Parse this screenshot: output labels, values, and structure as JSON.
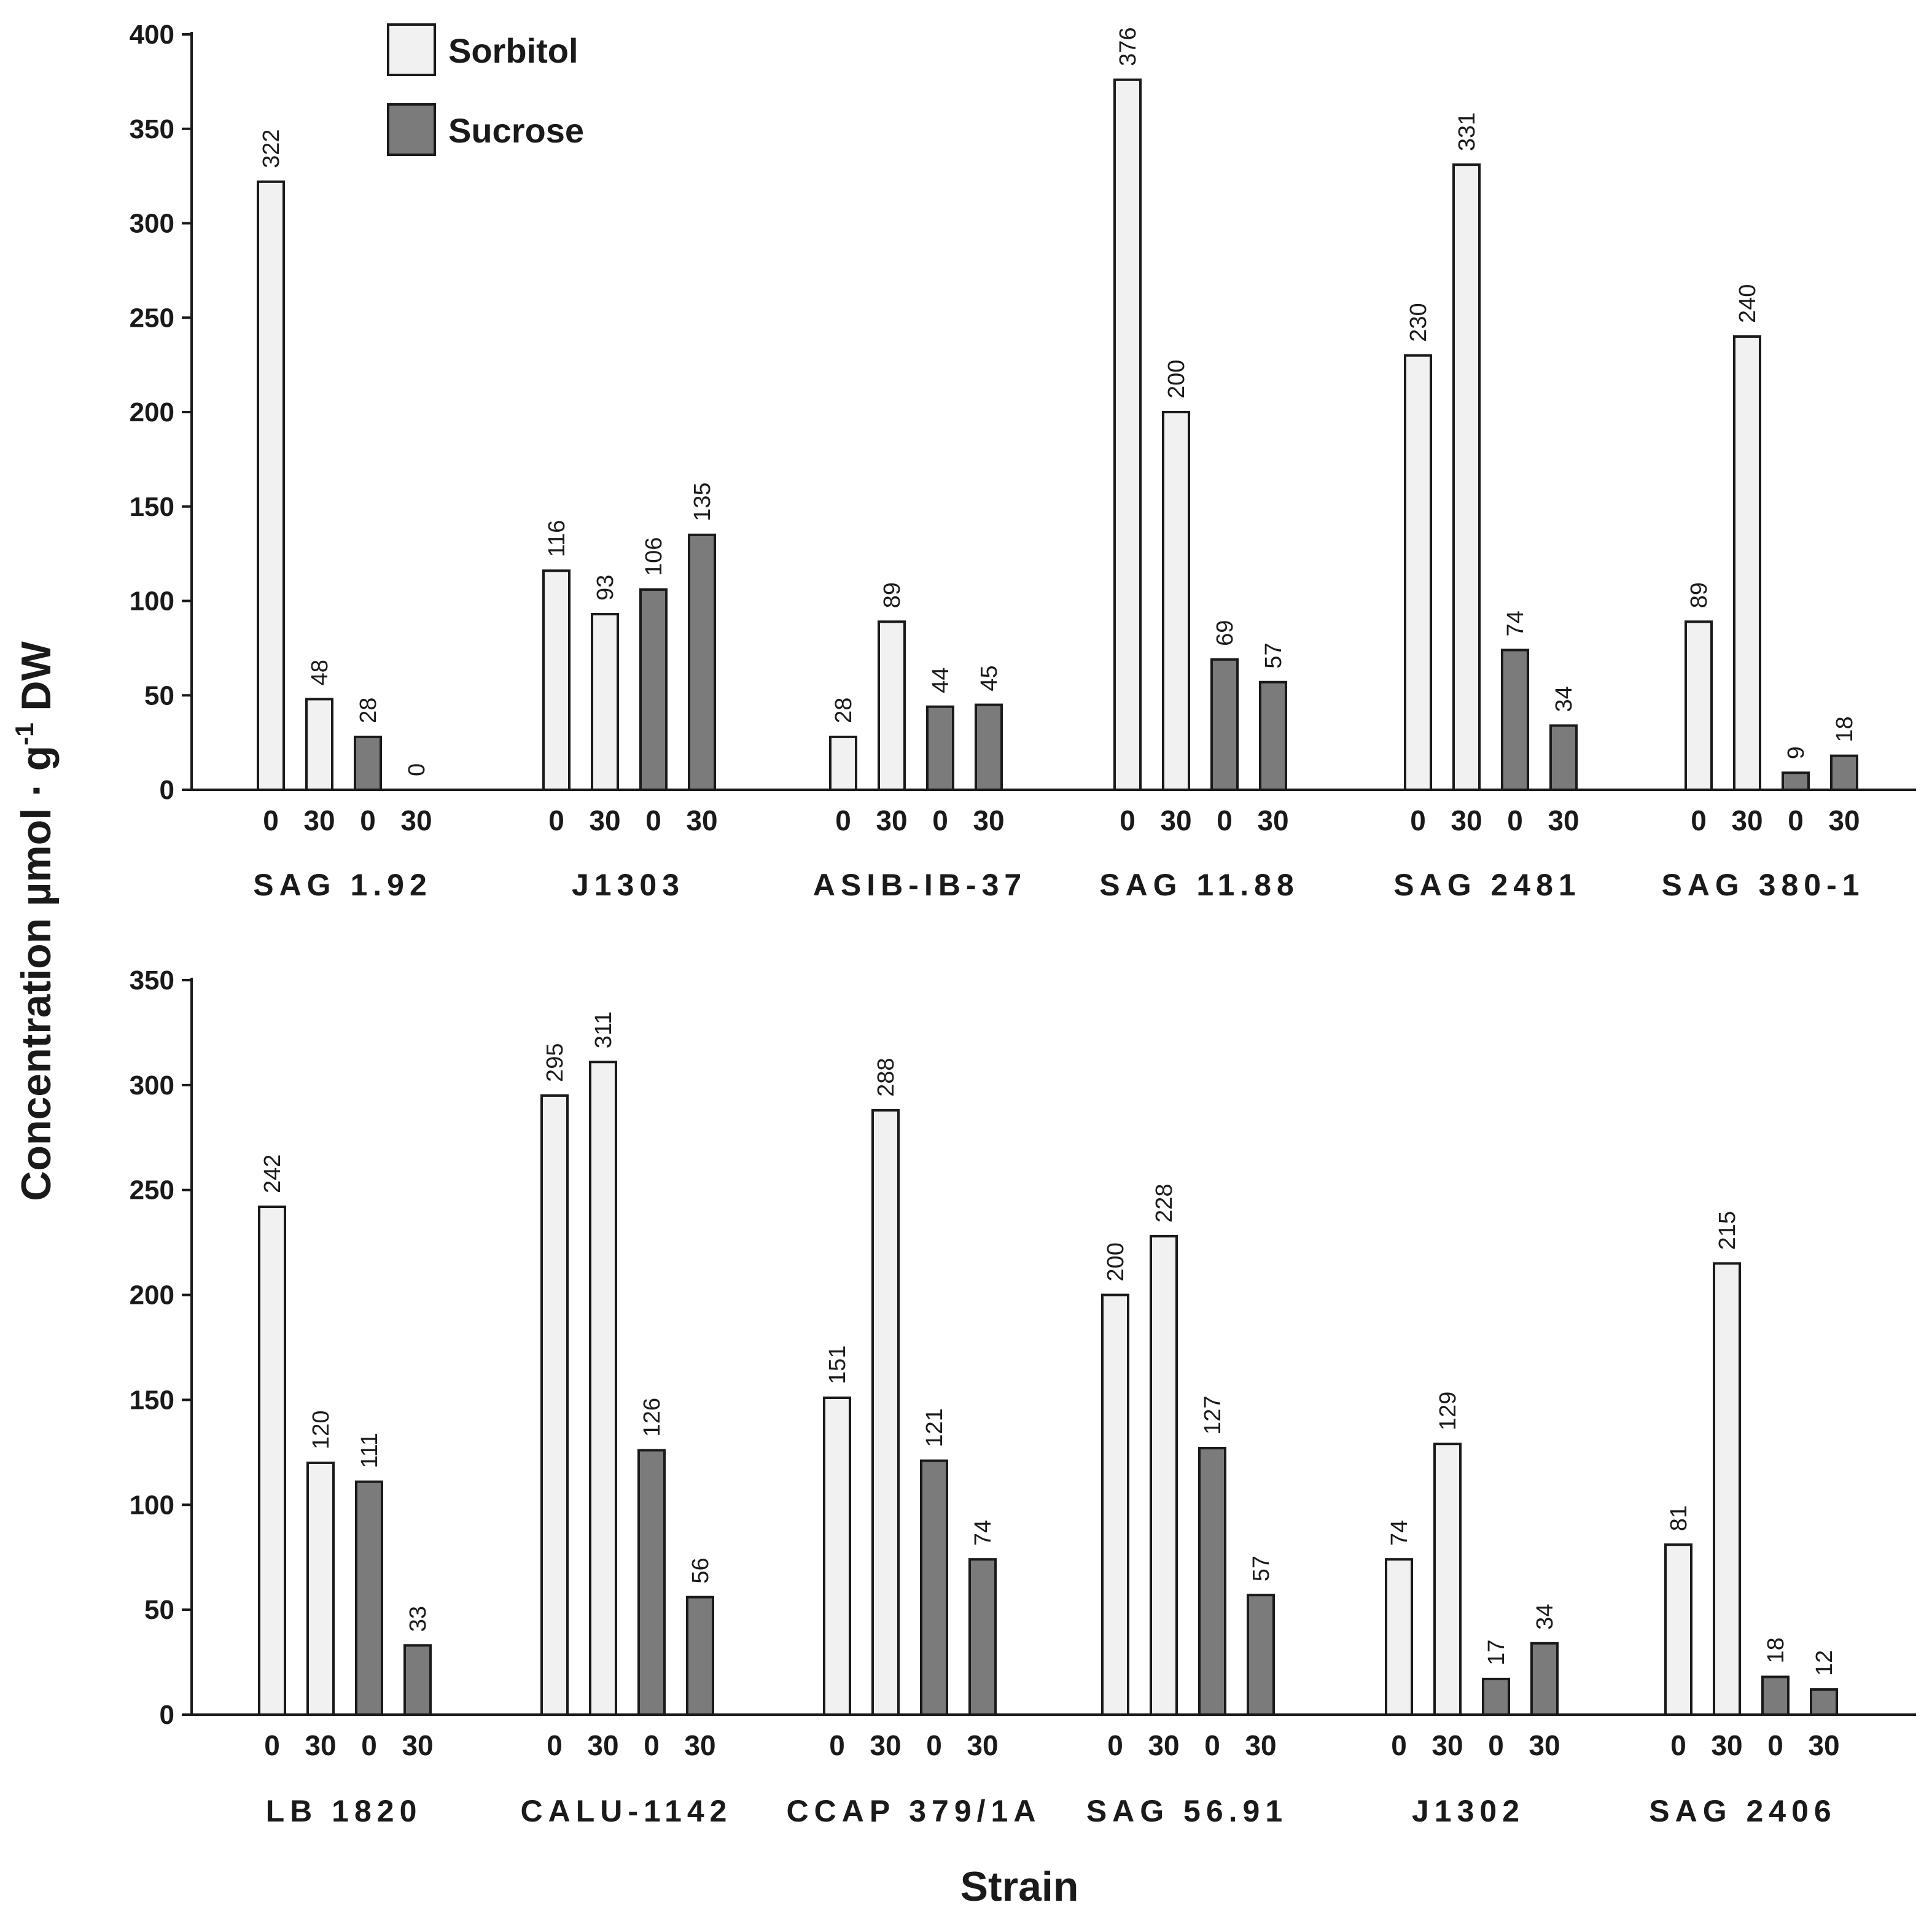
{
  "chart_data": {
    "type": "bar",
    "y_axis_label": "Concentration µmol · g",
    "y_axis_label_sup": "-1",
    "y_axis_label_suffix": " DW",
    "x_axis_label": "Strain",
    "colors": {
      "Sorbitol": "#f1f1f1",
      "Sucrose": "#7b7b7b",
      "axis": "#1a1a1a"
    },
    "legend": [
      {
        "name": "Sorbitol",
        "color": "#f1f1f1"
      },
      {
        "name": "Sucrose",
        "color": "#7b7b7b"
      }
    ],
    "panels": [
      {
        "ylim": [
          0,
          400
        ],
        "yticks": [
          "0",
          "50",
          "100",
          "150",
          "200",
          "250",
          "300",
          "350",
          "400"
        ],
        "groups": [
          {
            "strain": "SAG 1.92",
            "bars": [
              {
                "series": "Sorbitol",
                "condition": "0",
                "value": 322,
                "label": "322"
              },
              {
                "series": "Sorbitol",
                "condition": "30",
                "value": 48,
                "label": "48"
              },
              {
                "series": "Sucrose",
                "condition": "0",
                "value": 28,
                "label": "28"
              },
              {
                "series": "Sucrose",
                "condition": "30",
                "value": 0,
                "label": "0"
              }
            ]
          },
          {
            "strain": "J1303",
            "bars": [
              {
                "series": "Sorbitol",
                "condition": "0",
                "value": 116,
                "label": "116"
              },
              {
                "series": "Sorbitol",
                "condition": "30",
                "value": 93,
                "label": "93"
              },
              {
                "series": "Sucrose",
                "condition": "0",
                "value": 106,
                "label": "106"
              },
              {
                "series": "Sucrose",
                "condition": "30",
                "value": 135,
                "label": "135"
              }
            ]
          },
          {
            "strain": "ASIB-IB-37",
            "bars": [
              {
                "series": "Sorbitol",
                "condition": "0",
                "value": 28,
                "label": "28"
              },
              {
                "series": "Sorbitol",
                "condition": "30",
                "value": 89,
                "label": "89"
              },
              {
                "series": "Sucrose",
                "condition": "0",
                "value": 44,
                "label": "44"
              },
              {
                "series": "Sucrose",
                "condition": "30",
                "value": 45,
                "label": "45"
              }
            ]
          },
          {
            "strain": "SAG 11.88",
            "bars": [
              {
                "series": "Sorbitol",
                "condition": "0",
                "value": 376,
                "label": "376"
              },
              {
                "series": "Sorbitol",
                "condition": "30",
                "value": 200,
                "label": "200"
              },
              {
                "series": "Sucrose",
                "condition": "0",
                "value": 69,
                "label": "69"
              },
              {
                "series": "Sucrose",
                "condition": "30",
                "value": 57,
                "label": "57"
              }
            ]
          },
          {
            "strain": "SAG 2481",
            "bars": [
              {
                "series": "Sorbitol",
                "condition": "0",
                "value": 230,
                "label": "230"
              },
              {
                "series": "Sorbitol",
                "condition": "30",
                "value": 331,
                "label": "331"
              },
              {
                "series": "Sucrose",
                "condition": "0",
                "value": 74,
                "label": "74"
              },
              {
                "series": "Sucrose",
                "condition": "30",
                "value": 34,
                "label": "34"
              }
            ]
          },
          {
            "strain": "SAG 380-1",
            "bars": [
              {
                "series": "Sorbitol",
                "condition": "0",
                "value": 89,
                "label": "89"
              },
              {
                "series": "Sorbitol",
                "condition": "30",
                "value": 240,
                "label": "240"
              },
              {
                "series": "Sucrose",
                "condition": "0",
                "value": 9,
                "label": "9"
              },
              {
                "series": "Sucrose",
                "condition": "30",
                "value": 18,
                "label": "18"
              }
            ]
          }
        ]
      },
      {
        "ylim": [
          0,
          350
        ],
        "yticks": [
          "0",
          "50",
          "100",
          "150",
          "200",
          "250",
          "300",
          "350"
        ],
        "groups": [
          {
            "strain": "LB 1820",
            "bars": [
              {
                "series": "Sorbitol",
                "condition": "0",
                "value": 242,
                "label": "242"
              },
              {
                "series": "Sorbitol",
                "condition": "30",
                "value": 120,
                "label": "120"
              },
              {
                "series": "Sucrose",
                "condition": "0",
                "value": 111,
                "label": "111"
              },
              {
                "series": "Sucrose",
                "condition": "30",
                "value": 33,
                "label": "33"
              }
            ]
          },
          {
            "strain": "CALU-1142",
            "bars": [
              {
                "series": "Sorbitol",
                "condition": "0",
                "value": 295,
                "label": "295"
              },
              {
                "series": "Sorbitol",
                "condition": "30",
                "value": 311,
                "label": "311"
              },
              {
                "series": "Sucrose",
                "condition": "0",
                "value": 126,
                "label": "126"
              },
              {
                "series": "Sucrose",
                "condition": "30",
                "value": 56,
                "label": "56"
              }
            ]
          },
          {
            "strain": "CCAP 379/1A",
            "bars": [
              {
                "series": "Sorbitol",
                "condition": "0",
                "value": 151,
                "label": "151"
              },
              {
                "series": "Sorbitol",
                "condition": "30",
                "value": 288,
                "label": "288"
              },
              {
                "series": "Sucrose",
                "condition": "0",
                "value": 121,
                "label": "121"
              },
              {
                "series": "Sucrose",
                "condition": "30",
                "value": 74,
                "label": "74"
              }
            ]
          },
          {
            "strain": "SAG 56.91",
            "bars": [
              {
                "series": "Sorbitol",
                "condition": "0",
                "value": 200,
                "label": "200"
              },
              {
                "series": "Sorbitol",
                "condition": "30",
                "value": 228,
                "label": "228"
              },
              {
                "series": "Sucrose",
                "condition": "0",
                "value": 127,
                "label": "127"
              },
              {
                "series": "Sucrose",
                "condition": "30",
                "value": 57,
                "label": "57"
              }
            ]
          },
          {
            "strain": "J1302",
            "bars": [
              {
                "series": "Sorbitol",
                "condition": "0",
                "value": 74,
                "label": "74"
              },
              {
                "series": "Sorbitol",
                "condition": "30",
                "value": 129,
                "label": "129"
              },
              {
                "series": "Sucrose",
                "condition": "0",
                "value": 17,
                "label": "17"
              },
              {
                "series": "Sucrose",
                "condition": "30",
                "value": 34,
                "label": "34"
              }
            ]
          },
          {
            "strain": "SAG 2406",
            "bars": [
              {
                "series": "Sorbitol",
                "condition": "0",
                "value": 81,
                "label": "81"
              },
              {
                "series": "Sorbitol",
                "condition": "30",
                "value": 215,
                "label": "215"
              },
              {
                "series": "Sucrose",
                "condition": "0",
                "value": 18,
                "label": "18"
              },
              {
                "series": "Sucrose",
                "condition": "30",
                "value": 12,
                "label": "12"
              }
            ]
          }
        ]
      }
    ]
  }
}
